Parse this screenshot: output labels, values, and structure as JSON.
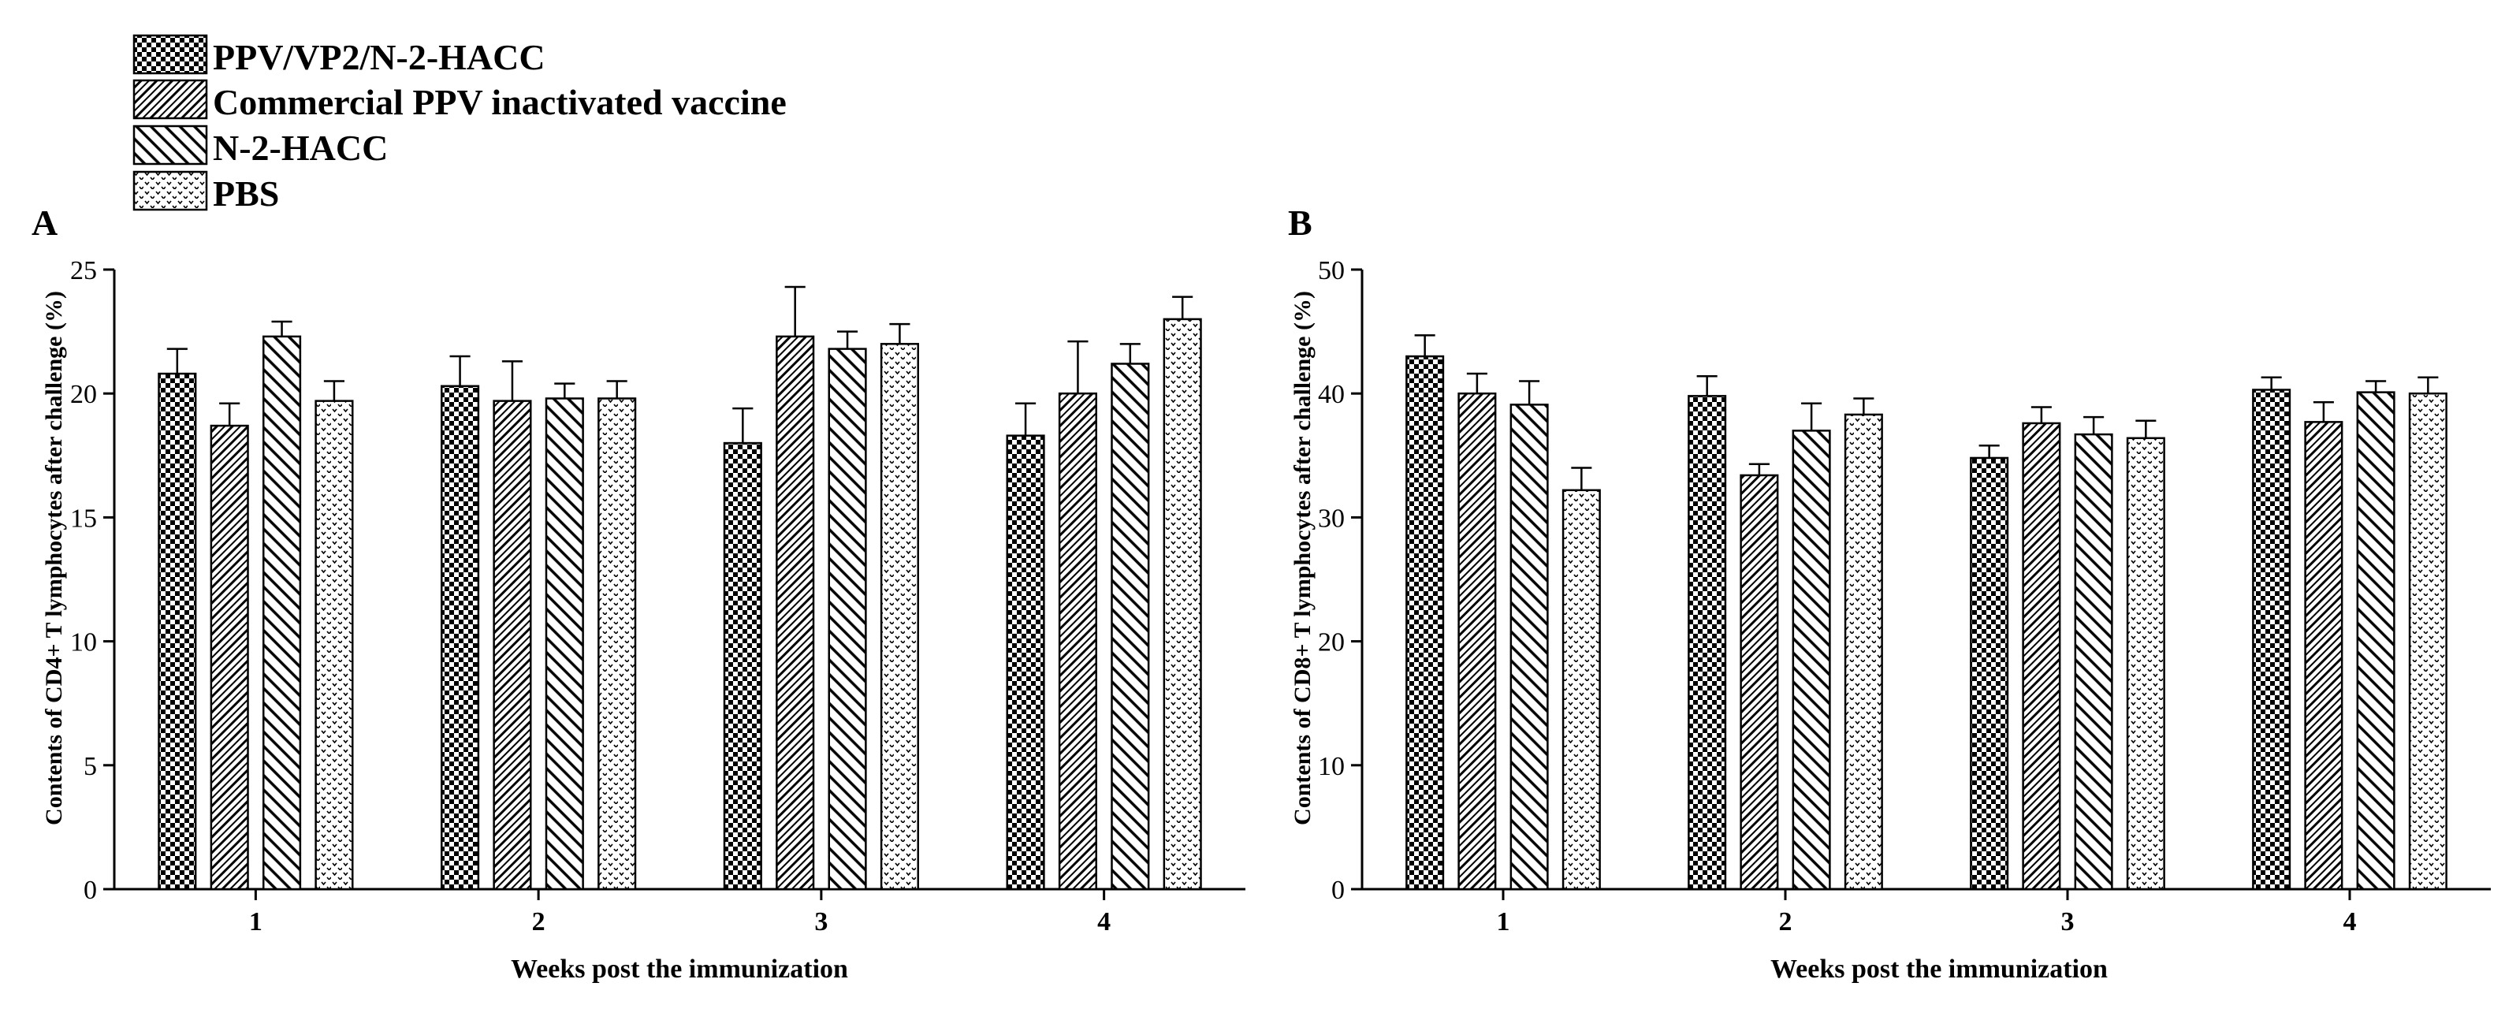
{
  "legend": [
    {
      "key": "ppv",
      "label": "PPV/VP2/N-2-HACC",
      "pattern": "checker"
    },
    {
      "key": "commercial",
      "label": "Commercial PPV inactivated vaccine",
      "pattern": "zigzag"
    },
    {
      "key": "hacc",
      "label": "N-2-HACC",
      "pattern": "hatch"
    },
    {
      "key": "pbs",
      "label": "PBS",
      "pattern": "dots"
    }
  ],
  "colors": {
    "ink": "#000000",
    "background": "#ffffff"
  },
  "chart_data": [
    {
      "panel": "A",
      "type": "bar",
      "ylabel": "Contents of CD4+ T lymphocytes after challenge (%)",
      "xlabel": "Weeks post the immunization",
      "categories": [
        "1",
        "2",
        "3",
        "4"
      ],
      "ylim": [
        0,
        25
      ],
      "yticks": [
        0,
        5,
        10,
        15,
        20,
        25
      ],
      "series": [
        {
          "name": "PPV/VP2/N-2-HACC",
          "values": [
            20.8,
            20.3,
            18.0,
            18.3
          ],
          "errors": [
            1.0,
            1.2,
            1.4,
            1.3
          ]
        },
        {
          "name": "Commercial PPV inactivated vaccine",
          "values": [
            18.7,
            19.7,
            22.3,
            20.0
          ],
          "errors": [
            0.9,
            1.6,
            2.0,
            2.1
          ]
        },
        {
          "name": "N-2-HACC",
          "values": [
            22.3,
            19.8,
            21.8,
            21.2
          ],
          "errors": [
            0.6,
            0.6,
            0.7,
            0.8
          ]
        },
        {
          "name": "PBS",
          "values": [
            19.7,
            19.8,
            22.0,
            23.0
          ],
          "errors": [
            0.8,
            0.7,
            0.8,
            0.9
          ]
        }
      ]
    },
    {
      "panel": "B",
      "type": "bar",
      "ylabel": "Contents of CD8+ T lymphocytes after challenge (%)",
      "xlabel": "Weeks post the immunization",
      "categories": [
        "1",
        "2",
        "3",
        "4"
      ],
      "ylim": [
        0,
        50
      ],
      "yticks": [
        0,
        10,
        20,
        30,
        40,
        50
      ],
      "series": [
        {
          "name": "PPV/VP2/N-2-HACC",
          "values": [
            43.0,
            39.8,
            34.8,
            40.3
          ],
          "errors": [
            1.7,
            1.6,
            1.0,
            1.0
          ]
        },
        {
          "name": "Commercial PPV inactivated vaccine",
          "values": [
            40.0,
            33.4,
            37.6,
            37.7
          ],
          "errors": [
            1.6,
            0.9,
            1.3,
            1.6
          ]
        },
        {
          "name": "N-2-HACC",
          "values": [
            39.1,
            37.0,
            36.7,
            40.1
          ],
          "errors": [
            1.9,
            2.2,
            1.4,
            0.9
          ]
        },
        {
          "name": "PBS",
          "values": [
            32.2,
            38.3,
            36.4,
            40.0
          ],
          "errors": [
            1.8,
            1.3,
            1.4,
            1.3
          ]
        }
      ]
    }
  ]
}
